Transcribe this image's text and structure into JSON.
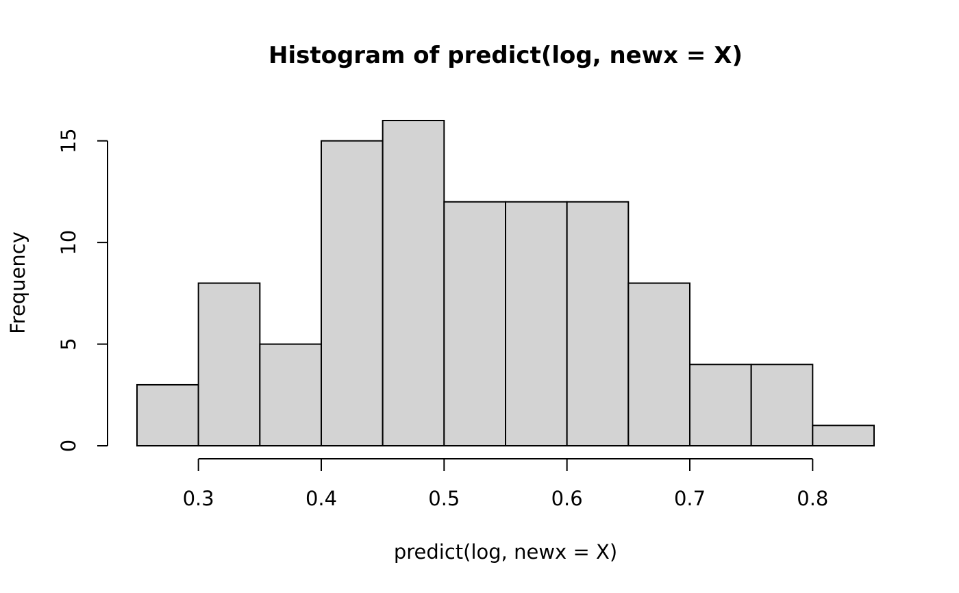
{
  "chart_data": {
    "type": "bar",
    "title": "Histogram of predict(log, newx = X)",
    "xlabel": "predict(log, newx = X)",
    "ylabel": "Frequency",
    "bins": [
      {
        "start": 0.25,
        "end": 0.3,
        "count": 3
      },
      {
        "start": 0.3,
        "end": 0.35,
        "count": 8
      },
      {
        "start": 0.35,
        "end": 0.4,
        "count": 5
      },
      {
        "start": 0.4,
        "end": 0.45,
        "count": 15
      },
      {
        "start": 0.45,
        "end": 0.5,
        "count": 16
      },
      {
        "start": 0.5,
        "end": 0.55,
        "count": 12
      },
      {
        "start": 0.55,
        "end": 0.6,
        "count": 12
      },
      {
        "start": 0.6,
        "end": 0.65,
        "count": 12
      },
      {
        "start": 0.65,
        "end": 0.7,
        "count": 8
      },
      {
        "start": 0.7,
        "end": 0.75,
        "count": 4
      },
      {
        "start": 0.75,
        "end": 0.8,
        "count": 4
      },
      {
        "start": 0.8,
        "end": 0.85,
        "count": 1
      }
    ],
    "xlim": [
      0.25,
      0.85
    ],
    "ylim": [
      0,
      16
    ],
    "x_ticks": [
      0.3,
      0.4,
      0.5,
      0.6,
      0.7,
      0.8
    ],
    "x_tick_labels": [
      "0.3",
      "0.4",
      "0.5",
      "0.6",
      "0.7",
      "0.8"
    ],
    "y_ticks": [
      0,
      5,
      10,
      15
    ],
    "y_tick_labels": [
      "0",
      "5",
      "10",
      "15"
    ],
    "grid": false,
    "bar_color": "#d3d3d3",
    "edge_color": "#000000"
  }
}
